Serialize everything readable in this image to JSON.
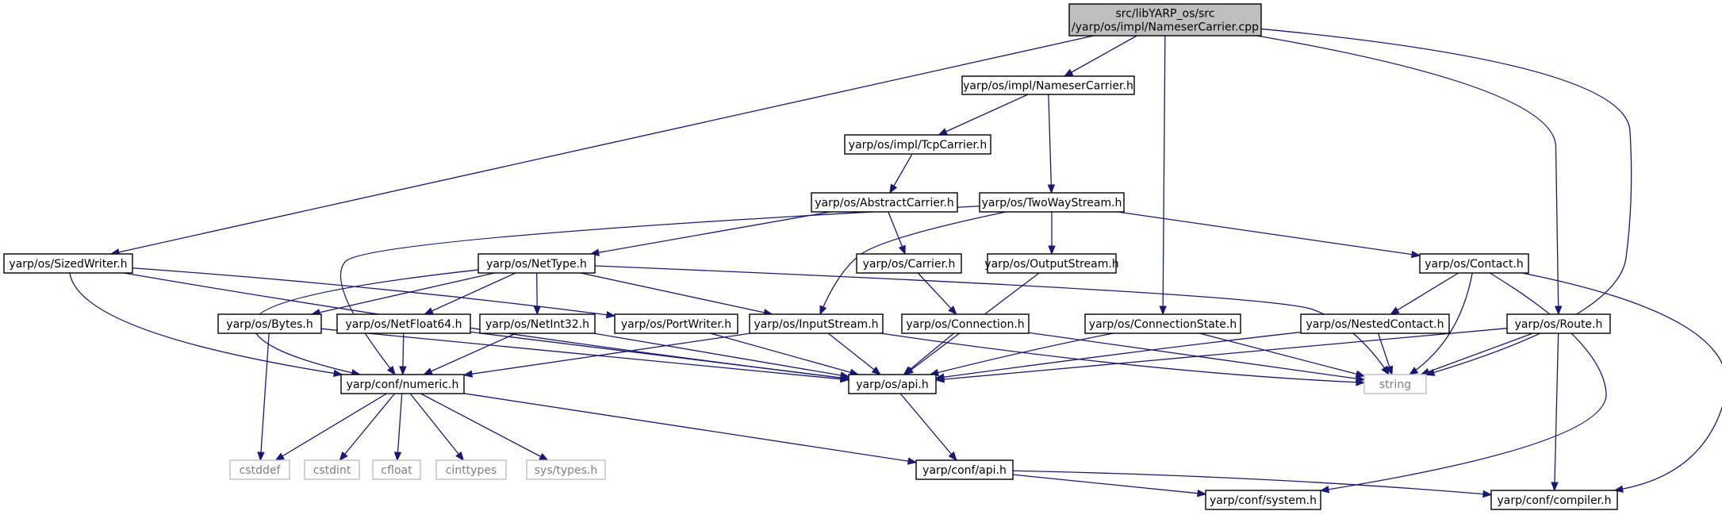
{
  "graph": {
    "title": "",
    "nodes": [
      {
        "id": "root",
        "label_lines": [
          "src/libYARP_os/src",
          "/yarp/os/impl/NameserCarrier.cpp"
        ],
        "style": "root"
      },
      {
        "id": "nameser_h",
        "label_lines": [
          "yarp/os/impl/NameserCarrier.h"
        ],
        "style": "normal"
      },
      {
        "id": "tcp",
        "label_lines": [
          "yarp/os/impl/TcpCarrier.h"
        ],
        "style": "normal"
      },
      {
        "id": "abstract",
        "label_lines": [
          "yarp/os/AbstractCarrier.h"
        ],
        "style": "normal"
      },
      {
        "id": "twoway",
        "label_lines": [
          "yarp/os/TwoWayStream.h"
        ],
        "style": "normal"
      },
      {
        "id": "sized",
        "label_lines": [
          "yarp/os/SizedWriter.h"
        ],
        "style": "normal"
      },
      {
        "id": "nettype",
        "label_lines": [
          "yarp/os/NetType.h"
        ],
        "style": "normal"
      },
      {
        "id": "carrier",
        "label_lines": [
          "yarp/os/Carrier.h"
        ],
        "style": "normal"
      },
      {
        "id": "output",
        "label_lines": [
          "yarp/os/OutputStream.h"
        ],
        "style": "normal"
      },
      {
        "id": "contact",
        "label_lines": [
          "yarp/os/Contact.h"
        ],
        "style": "normal"
      },
      {
        "id": "bytes",
        "label_lines": [
          "yarp/os/Bytes.h"
        ],
        "style": "normal"
      },
      {
        "id": "netfloat",
        "label_lines": [
          "yarp/os/NetFloat64.h"
        ],
        "style": "normal"
      },
      {
        "id": "netint",
        "label_lines": [
          "yarp/os/NetInt32.h"
        ],
        "style": "normal"
      },
      {
        "id": "portwriter",
        "label_lines": [
          "yarp/os/PortWriter.h"
        ],
        "style": "normal"
      },
      {
        "id": "input",
        "label_lines": [
          "yarp/os/InputStream.h"
        ],
        "style": "normal"
      },
      {
        "id": "connection",
        "label_lines": [
          "yarp/os/Connection.h"
        ],
        "style": "normal"
      },
      {
        "id": "connstate",
        "label_lines": [
          "yarp/os/ConnectionState.h"
        ],
        "style": "normal"
      },
      {
        "id": "nested",
        "label_lines": [
          "yarp/os/NestedContact.h"
        ],
        "style": "normal"
      },
      {
        "id": "route",
        "label_lines": [
          "yarp/os/Route.h"
        ],
        "style": "normal"
      },
      {
        "id": "numeric",
        "label_lines": [
          "yarp/conf/numeric.h"
        ],
        "style": "normal"
      },
      {
        "id": "osapi",
        "label_lines": [
          "yarp/os/api.h"
        ],
        "style": "normal"
      },
      {
        "id": "string",
        "label_lines": [
          "string"
        ],
        "style": "external"
      },
      {
        "id": "cstddef",
        "label_lines": [
          "cstddef"
        ],
        "style": "external"
      },
      {
        "id": "cstdint",
        "label_lines": [
          "cstdint"
        ],
        "style": "external"
      },
      {
        "id": "cfloat",
        "label_lines": [
          "cfloat"
        ],
        "style": "external"
      },
      {
        "id": "cinttypes",
        "label_lines": [
          "cinttypes"
        ],
        "style": "external"
      },
      {
        "id": "systypes",
        "label_lines": [
          "sys/types.h"
        ],
        "style": "external"
      },
      {
        "id": "confapi",
        "label_lines": [
          "yarp/conf/api.h"
        ],
        "style": "normal"
      },
      {
        "id": "system",
        "label_lines": [
          "yarp/conf/system.h"
        ],
        "style": "normal"
      },
      {
        "id": "compiler",
        "label_lines": [
          "yarp/conf/compiler.h"
        ],
        "style": "normal"
      }
    ],
    "edges": [
      {
        "from": "root",
        "to": "nameser_h"
      },
      {
        "from": "root",
        "to": "sized"
      },
      {
        "from": "root",
        "to": "connstate"
      },
      {
        "from": "root",
        "to": "route"
      },
      {
        "from": "root",
        "to": "string"
      },
      {
        "from": "nameser_h",
        "to": "tcp"
      },
      {
        "from": "nameser_h",
        "to": "twoway"
      },
      {
        "from": "tcp",
        "to": "abstract"
      },
      {
        "from": "abstract",
        "to": "nettype"
      },
      {
        "from": "abstract",
        "to": "carrier"
      },
      {
        "from": "twoway",
        "to": "numeric"
      },
      {
        "from": "twoway",
        "to": "input"
      },
      {
        "from": "twoway",
        "to": "output"
      },
      {
        "from": "twoway",
        "to": "contact"
      },
      {
        "from": "sized",
        "to": "numeric"
      },
      {
        "from": "sized",
        "to": "osapi"
      },
      {
        "from": "sized",
        "to": "portwriter"
      },
      {
        "from": "nettype",
        "to": "numeric"
      },
      {
        "from": "nettype",
        "to": "bytes"
      },
      {
        "from": "nettype",
        "to": "netfloat"
      },
      {
        "from": "nettype",
        "to": "netint"
      },
      {
        "from": "nettype",
        "to": "input"
      },
      {
        "from": "nettype",
        "to": "string"
      },
      {
        "from": "carrier",
        "to": "connection"
      },
      {
        "from": "output",
        "to": "osapi"
      },
      {
        "from": "contact",
        "to": "nested"
      },
      {
        "from": "contact",
        "to": "string"
      },
      {
        "from": "contact",
        "to": "system"
      },
      {
        "from": "contact",
        "to": "compiler"
      },
      {
        "from": "bytes",
        "to": "cstddef"
      },
      {
        "from": "bytes",
        "to": "osapi"
      },
      {
        "from": "netfloat",
        "to": "numeric"
      },
      {
        "from": "netfloat",
        "to": "osapi"
      },
      {
        "from": "netint",
        "to": "numeric"
      },
      {
        "from": "netint",
        "to": "osapi"
      },
      {
        "from": "portwriter",
        "to": "osapi"
      },
      {
        "from": "input",
        "to": "numeric"
      },
      {
        "from": "input",
        "to": "osapi"
      },
      {
        "from": "input",
        "to": "string"
      },
      {
        "from": "connection",
        "to": "osapi"
      },
      {
        "from": "connection",
        "to": "string"
      },
      {
        "from": "connstate",
        "to": "osapi"
      },
      {
        "from": "connstate",
        "to": "string"
      },
      {
        "from": "nested",
        "to": "osapi"
      },
      {
        "from": "nested",
        "to": "string"
      },
      {
        "from": "route",
        "to": "osapi"
      },
      {
        "from": "route",
        "to": "string"
      },
      {
        "from": "route",
        "to": "compiler"
      },
      {
        "from": "numeric",
        "to": "cstddef"
      },
      {
        "from": "numeric",
        "to": "cstdint"
      },
      {
        "from": "numeric",
        "to": "cfloat"
      },
      {
        "from": "numeric",
        "to": "cinttypes"
      },
      {
        "from": "numeric",
        "to": "systypes"
      },
      {
        "from": "numeric",
        "to": "confapi"
      },
      {
        "from": "osapi",
        "to": "confapi"
      },
      {
        "from": "confapi",
        "to": "system"
      },
      {
        "from": "confapi",
        "to": "compiler"
      }
    ]
  }
}
